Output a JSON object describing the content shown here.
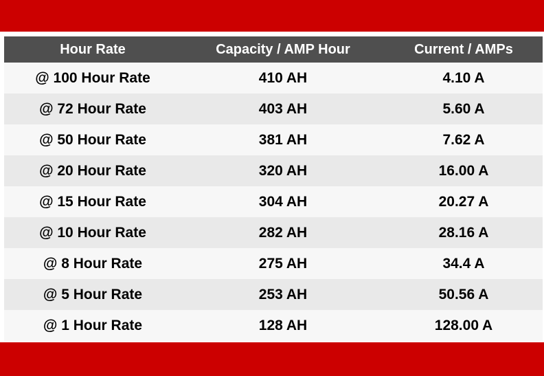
{
  "colors": {
    "band": "#cc0000",
    "header_bg": "#4f4f4f",
    "row_light": "#f7f7f7",
    "row_dark": "#e9e9e9"
  },
  "table": {
    "headers": [
      "Hour Rate",
      "Capacity / AMP Hour",
      "Current / AMPs"
    ],
    "rows": [
      [
        "@ 100 Hour Rate",
        "410 AH",
        "4.10 A"
      ],
      [
        "@ 72 Hour Rate",
        "403 AH",
        "5.60 A"
      ],
      [
        "@ 50 Hour Rate",
        "381 AH",
        "7.62 A"
      ],
      [
        "@ 20 Hour Rate",
        "320 AH",
        "16.00 A"
      ],
      [
        "@ 15 Hour Rate",
        "304 AH",
        "20.27 A"
      ],
      [
        "@ 10 Hour Rate",
        "282 AH",
        "28.16 A"
      ],
      [
        "@ 8 Hour Rate",
        "275 AH",
        "34.4 A"
      ],
      [
        "@ 5 Hour Rate",
        "253 AH",
        "50.56 A"
      ],
      [
        "@ 1 Hour Rate",
        "128 AH",
        "128.00 A"
      ]
    ]
  }
}
